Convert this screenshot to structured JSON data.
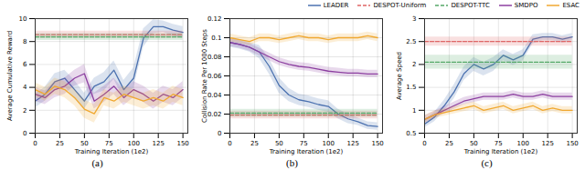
{
  "chart_data": [
    {
      "type": "line",
      "caption": "(a)",
      "x_label": "Training Iteration (1e2)",
      "y_label": "Average Cumulative Reward",
      "xlim": [
        0,
        155
      ],
      "xticks": [
        0,
        25,
        50,
        75,
        100,
        125,
        150
      ],
      "ylim": [
        0,
        10
      ],
      "yticks": [
        0,
        2,
        4,
        6,
        8,
        10
      ],
      "grid": true,
      "x": [
        0,
        10,
        20,
        30,
        40,
        50,
        60,
        70,
        80,
        90,
        100,
        110,
        120,
        130,
        140,
        150
      ],
      "series": [
        {
          "name": "LEADER",
          "color": "#4c72b0",
          "line_style": "solid",
          "values": [
            2.8,
            3.4,
            4.5,
            4.8,
            3.8,
            2.8,
            4.1,
            4.5,
            5.5,
            3.8,
            4.8,
            8.3,
            9.3,
            9.3,
            9.0,
            8.8
          ],
          "std": [
            0.6,
            0.6,
            0.7,
            0.7,
            0.8,
            0.7,
            0.7,
            0.8,
            0.8,
            0.8,
            0.9,
            0.8,
            0.6,
            0.5,
            0.5,
            0.5
          ]
        },
        {
          "name": "DESPOT-Uniform",
          "color": "#e06666",
          "line_style": "dashed",
          "values": [
            8.6,
            8.6,
            8.6,
            8.6,
            8.6,
            8.6,
            8.6,
            8.6,
            8.6,
            8.6,
            8.6,
            8.6,
            8.6,
            8.6,
            8.6,
            8.6
          ],
          "std": [
            0.3,
            0.3,
            0.3,
            0.3,
            0.3,
            0.3,
            0.3,
            0.3,
            0.3,
            0.3,
            0.3,
            0.3,
            0.3,
            0.3,
            0.3,
            0.3
          ]
        },
        {
          "name": "DESPOT-TTC",
          "color": "#55a868",
          "line_style": "dashed",
          "values": [
            8.4,
            8.4,
            8.4,
            8.4,
            8.4,
            8.4,
            8.4,
            8.4,
            8.4,
            8.4,
            8.4,
            8.4,
            8.4,
            8.4,
            8.4,
            8.4
          ],
          "std": [
            0.3,
            0.3,
            0.3,
            0.3,
            0.3,
            0.3,
            0.3,
            0.3,
            0.3,
            0.3,
            0.3,
            0.3,
            0.3,
            0.3,
            0.3,
            0.3
          ]
        },
        {
          "name": "SMDPO",
          "color": "#8c3fa0",
          "line_style": "solid",
          "values": [
            3.4,
            3.1,
            3.8,
            4.1,
            4.8,
            5.2,
            2.8,
            3.4,
            4.1,
            3.1,
            3.8,
            3.4,
            2.8,
            3.4,
            3.1,
            3.8
          ],
          "std": [
            0.6,
            0.6,
            0.7,
            0.7,
            0.7,
            0.8,
            0.7,
            0.7,
            0.7,
            0.7,
            0.7,
            0.7,
            0.7,
            0.7,
            0.7,
            0.7
          ]
        },
        {
          "name": "ESAC",
          "color": "#f0a830",
          "line_style": "solid",
          "values": [
            3.8,
            3.4,
            4.1,
            3.8,
            3.1,
            2.1,
            1.7,
            3.1,
            2.8,
            3.4,
            3.1,
            2.8,
            3.1,
            2.8,
            3.4,
            3.1
          ],
          "std": [
            0.6,
            0.6,
            0.7,
            0.7,
            0.7,
            0.8,
            0.8,
            0.7,
            0.7,
            0.7,
            0.7,
            0.7,
            0.7,
            0.7,
            0.7,
            0.7
          ]
        }
      ]
    },
    {
      "type": "line",
      "caption": "(b)",
      "x_label": "Training Iteration (1e2)",
      "y_label": "Collision Rate Per 1000 Steps",
      "xlim": [
        0,
        155
      ],
      "xticks": [
        0,
        25,
        50,
        75,
        100,
        125,
        150
      ],
      "ylim": [
        0,
        0.12
      ],
      "yticks": [
        0,
        0.02,
        0.04,
        0.06,
        0.08,
        0.1,
        0.12
      ],
      "grid": true,
      "x": [
        0,
        10,
        20,
        30,
        40,
        50,
        60,
        70,
        80,
        90,
        100,
        110,
        120,
        130,
        140,
        150
      ],
      "series": [
        {
          "name": "LEADER",
          "color": "#4c72b0",
          "line_style": "solid",
          "values": [
            0.095,
            0.093,
            0.09,
            0.085,
            0.07,
            0.05,
            0.04,
            0.035,
            0.033,
            0.03,
            0.028,
            0.02,
            0.015,
            0.012,
            0.008,
            0.007
          ],
          "std": [
            0.005,
            0.005,
            0.005,
            0.007,
            0.008,
            0.008,
            0.007,
            0.006,
            0.006,
            0.006,
            0.006,
            0.005,
            0.005,
            0.004,
            0.004,
            0.004
          ]
        },
        {
          "name": "DESPOT-Uniform",
          "color": "#e06666",
          "line_style": "dashed",
          "values": [
            0.019,
            0.019,
            0.019,
            0.019,
            0.019,
            0.019,
            0.019,
            0.019,
            0.019,
            0.019,
            0.019,
            0.019,
            0.019,
            0.019,
            0.019,
            0.019
          ],
          "std": [
            0.004,
            0.004,
            0.004,
            0.004,
            0.004,
            0.004,
            0.004,
            0.004,
            0.004,
            0.004,
            0.004,
            0.004,
            0.004,
            0.004,
            0.004,
            0.004
          ]
        },
        {
          "name": "DESPOT-TTC",
          "color": "#55a868",
          "line_style": "dashed",
          "values": [
            0.021,
            0.021,
            0.021,
            0.021,
            0.021,
            0.021,
            0.021,
            0.021,
            0.021,
            0.021,
            0.021,
            0.021,
            0.021,
            0.021,
            0.021,
            0.021
          ],
          "std": [
            0.004,
            0.004,
            0.004,
            0.004,
            0.004,
            0.004,
            0.004,
            0.004,
            0.004,
            0.004,
            0.004,
            0.004,
            0.004,
            0.004,
            0.004,
            0.004
          ]
        },
        {
          "name": "SMDPO",
          "color": "#8c3fa0",
          "line_style": "solid",
          "values": [
            0.095,
            0.093,
            0.09,
            0.085,
            0.08,
            0.075,
            0.072,
            0.07,
            0.069,
            0.067,
            0.065,
            0.064,
            0.063,
            0.063,
            0.062,
            0.062
          ],
          "std": [
            0.004,
            0.004,
            0.004,
            0.004,
            0.004,
            0.004,
            0.004,
            0.004,
            0.004,
            0.004,
            0.004,
            0.004,
            0.004,
            0.004,
            0.004,
            0.004
          ]
        },
        {
          "name": "ESAC",
          "color": "#f0a830",
          "line_style": "solid",
          "values": [
            0.1,
            0.098,
            0.096,
            0.1,
            0.1,
            0.098,
            0.1,
            0.102,
            0.1,
            0.1,
            0.098,
            0.1,
            0.1,
            0.1,
            0.102,
            0.1
          ],
          "std": [
            0.004,
            0.004,
            0.004,
            0.004,
            0.004,
            0.004,
            0.004,
            0.004,
            0.004,
            0.004,
            0.004,
            0.004,
            0.004,
            0.004,
            0.004,
            0.004
          ]
        }
      ]
    },
    {
      "type": "line",
      "caption": "(c)",
      "x_label": "Training Iteration (1e2)",
      "y_label": "Average Speed",
      "xlim": [
        0,
        155
      ],
      "xticks": [
        0,
        25,
        50,
        75,
        100,
        125,
        150
      ],
      "ylim": [
        0.5,
        3
      ],
      "yticks": [
        0.5,
        1,
        1.5,
        2,
        2.5,
        3
      ],
      "grid": true,
      "legend": "top right",
      "x": [
        0,
        10,
        20,
        30,
        40,
        50,
        60,
        70,
        80,
        90,
        100,
        110,
        120,
        130,
        140,
        150
      ],
      "series": [
        {
          "name": "LEADER",
          "color": "#4c72b0",
          "line_style": "solid",
          "values": [
            0.7,
            0.85,
            1.1,
            1.4,
            1.8,
            2.0,
            1.9,
            2.0,
            2.2,
            2.1,
            2.2,
            2.55,
            2.6,
            2.6,
            2.55,
            2.6
          ],
          "std": [
            0.08,
            0.1,
            0.12,
            0.15,
            0.15,
            0.15,
            0.15,
            0.15,
            0.12,
            0.12,
            0.12,
            0.1,
            0.08,
            0.08,
            0.08,
            0.08
          ]
        },
        {
          "name": "DESPOT-Uniform",
          "color": "#e06666",
          "line_style": "dashed",
          "values": [
            2.5,
            2.5,
            2.5,
            2.5,
            2.5,
            2.5,
            2.5,
            2.5,
            2.5,
            2.5,
            2.5,
            2.5,
            2.5,
            2.5,
            2.5,
            2.5
          ],
          "std": [
            0.1,
            0.1,
            0.1,
            0.1,
            0.1,
            0.1,
            0.1,
            0.1,
            0.1,
            0.1,
            0.1,
            0.1,
            0.1,
            0.1,
            0.1,
            0.1
          ]
        },
        {
          "name": "DESPOT-TTC",
          "color": "#55a868",
          "line_style": "dashed",
          "values": [
            2.05,
            2.05,
            2.05,
            2.05,
            2.05,
            2.05,
            2.05,
            2.05,
            2.05,
            2.05,
            2.05,
            2.05,
            2.05,
            2.05,
            2.05,
            2.05
          ],
          "std": [
            0.15,
            0.15,
            0.15,
            0.15,
            0.15,
            0.15,
            0.15,
            0.15,
            0.15,
            0.15,
            0.15,
            0.15,
            0.15,
            0.15,
            0.15,
            0.15
          ]
        },
        {
          "name": "SMDPO",
          "color": "#8c3fa0",
          "line_style": "solid",
          "values": [
            0.8,
            0.9,
            1.0,
            1.1,
            1.2,
            1.25,
            1.3,
            1.3,
            1.3,
            1.35,
            1.3,
            1.3,
            1.35,
            1.3,
            1.3,
            1.3
          ],
          "std": [
            0.08,
            0.08,
            0.08,
            0.08,
            0.08,
            0.08,
            0.08,
            0.08,
            0.08,
            0.08,
            0.08,
            0.08,
            0.08,
            0.08,
            0.08,
            0.08
          ]
        },
        {
          "name": "ESAC",
          "color": "#f0a830",
          "line_style": "solid",
          "values": [
            0.8,
            0.9,
            0.95,
            1.0,
            1.05,
            1.1,
            1.0,
            1.05,
            1.1,
            1.0,
            1.05,
            1.1,
            1.0,
            1.05,
            1.0,
            1.0
          ],
          "std": [
            0.08,
            0.08,
            0.08,
            0.08,
            0.08,
            0.08,
            0.08,
            0.08,
            0.08,
            0.08,
            0.08,
            0.08,
            0.08,
            0.08,
            0.08,
            0.08
          ]
        }
      ]
    }
  ]
}
